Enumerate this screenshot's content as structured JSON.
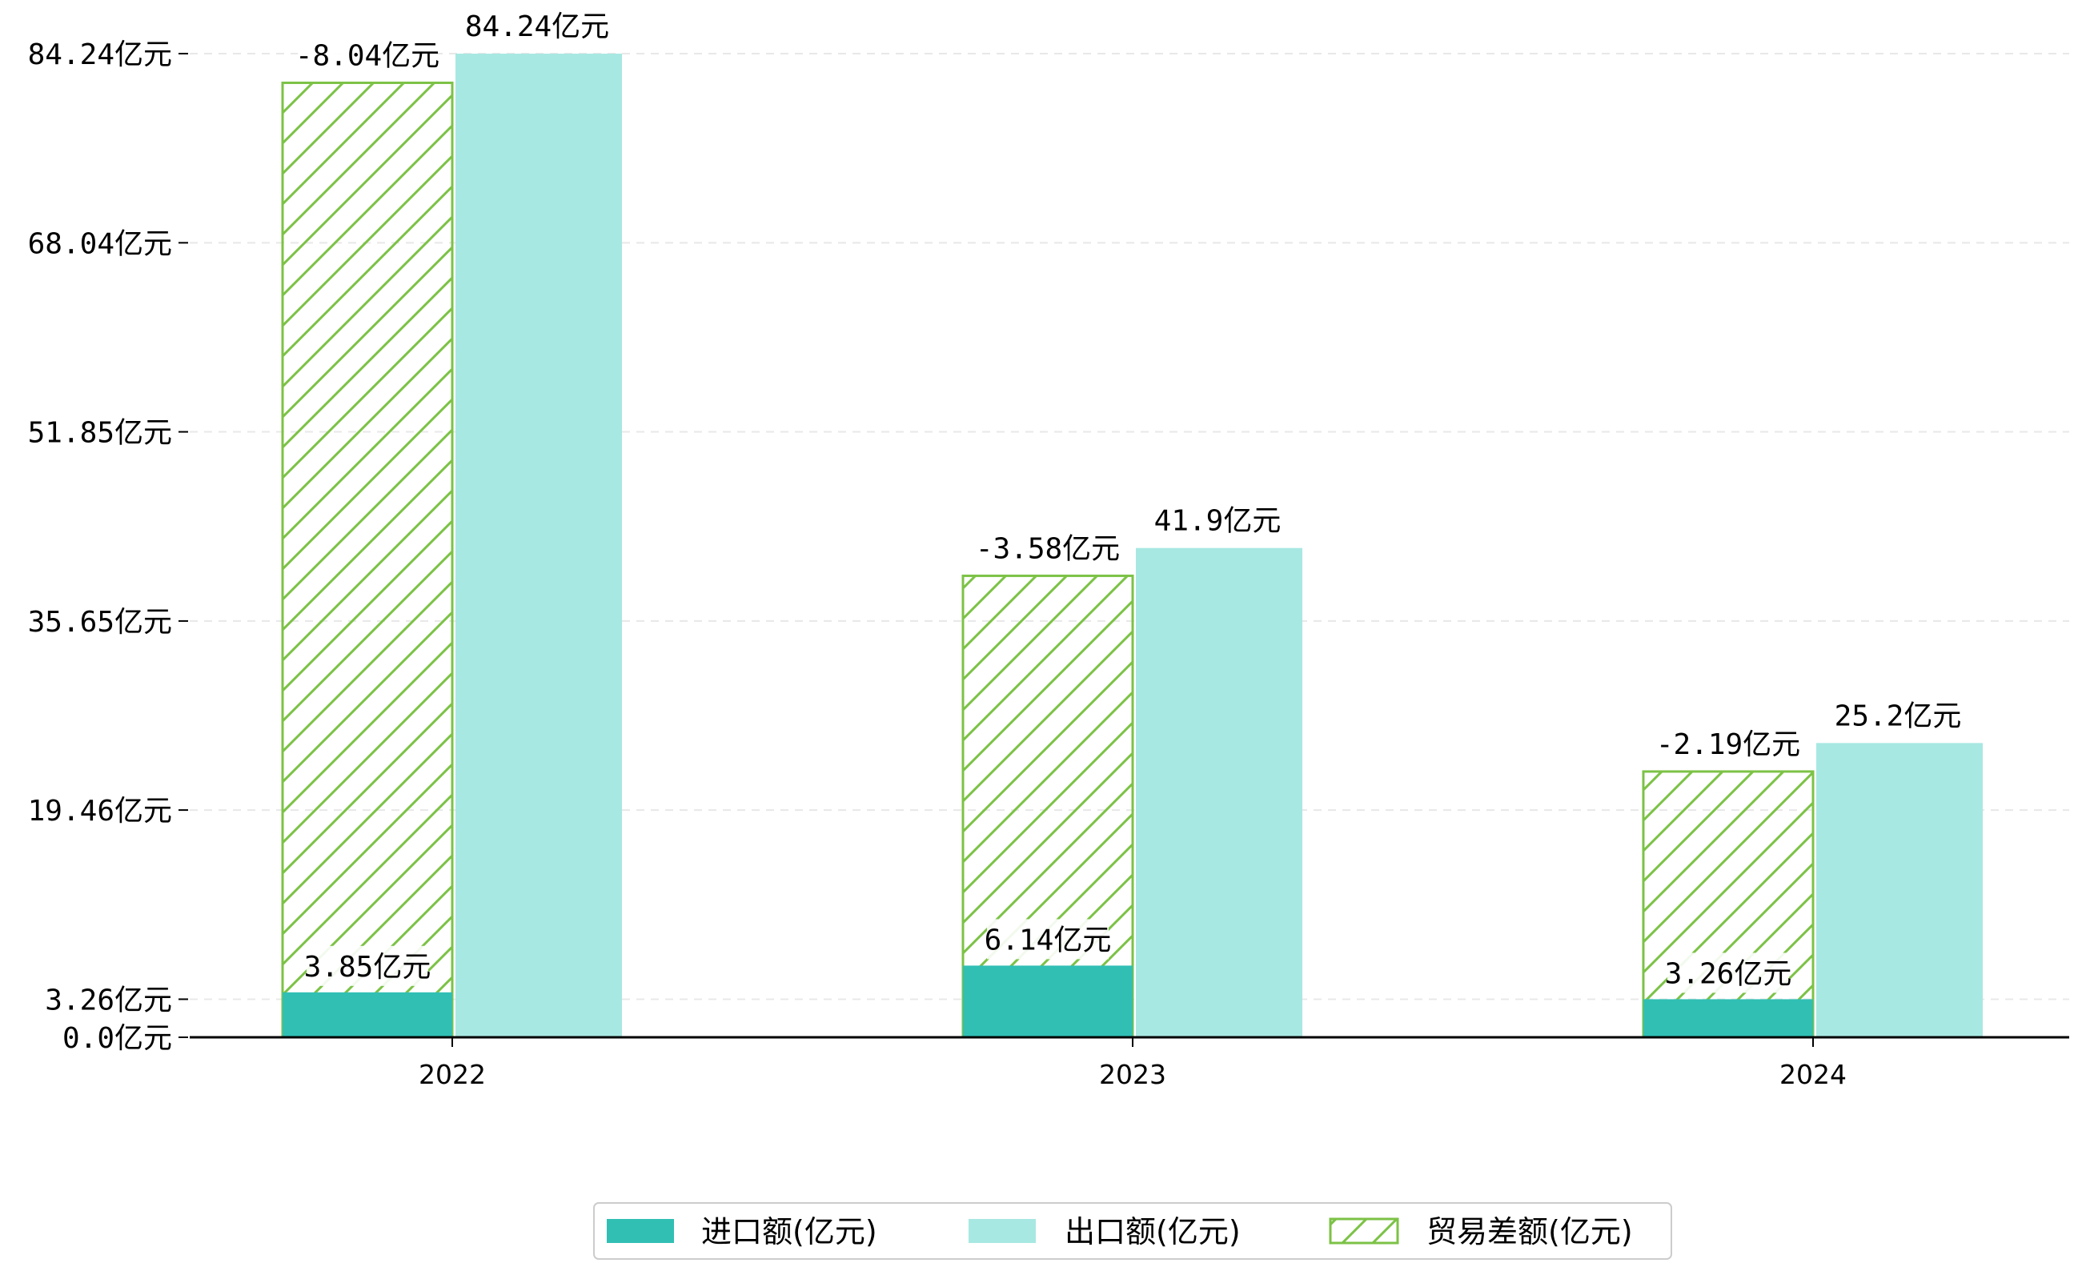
{
  "chart_data": {
    "type": "bar",
    "categories": [
      "2022",
      "2023",
      "2024"
    ],
    "series": [
      {
        "name": "进口额(亿元)",
        "values": [
          3.85,
          6.14,
          3.26
        ],
        "labels": [
          "3.85亿元",
          "6.14亿元",
          "3.26亿元"
        ]
      },
      {
        "name": "出口额(亿元)",
        "values": [
          84.24,
          41.9,
          25.2
        ],
        "labels": [
          "84.24亿元",
          "41.9亿元",
          "25.2亿元"
        ]
      },
      {
        "name": "贸易差额(亿元)",
        "values": [
          -8.04,
          -3.58,
          -2.19
        ],
        "labels": [
          "-8.04亿元",
          "-3.58亿元",
          "-2.19亿元"
        ]
      }
    ],
    "hatched_bar_tops": [
      81.74,
      39.52,
      22.76
    ],
    "yticks": [
      0.0,
      3.26,
      19.46,
      35.65,
      51.85,
      68.04,
      84.24
    ],
    "ytick_labels": [
      "0.0亿元",
      "3.26亿元",
      "19.46亿元",
      "35.65亿元",
      "51.85亿元",
      "68.04亿元",
      "84.24亿元"
    ],
    "ylim": [
      0,
      84.24
    ],
    "grid": "horizontal dashed",
    "legend_position": "bottom-center",
    "xlabel": "",
    "ylabel": "",
    "title": ""
  },
  "colors": {
    "import": "#31bfb4",
    "export": "#a8e8e2",
    "balance_hatch": "#7cc246",
    "grid": "#e8e8e8",
    "axis": "#000000"
  }
}
